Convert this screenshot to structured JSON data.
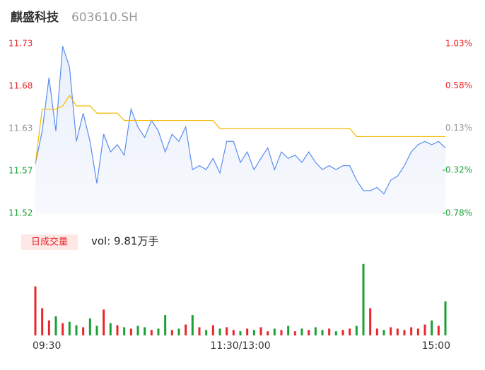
{
  "chart_data": {
    "type": "line",
    "title": "麒盛科技",
    "subtitle": "603610.SH",
    "x": [
      0,
      4,
      8,
      12,
      16,
      20,
      24,
      28,
      32,
      36,
      40,
      44,
      48,
      52,
      56,
      60,
      64,
      68,
      72,
      76,
      80,
      84,
      88,
      92,
      96,
      100,
      104,
      108,
      112,
      116,
      120,
      124,
      128,
      132,
      136,
      140,
      144,
      148,
      152,
      156,
      160,
      164,
      168,
      172,
      176,
      180,
      184,
      188,
      192,
      196,
      200,
      204,
      208,
      212,
      216,
      220,
      224,
      228,
      232,
      236,
      240
    ],
    "xlim": [
      0,
      240
    ],
    "xticks": [
      {
        "value": 0,
        "label": "09:30"
      },
      {
        "value": 120,
        "label": "11:30/13:00"
      },
      {
        "value": 240,
        "label": "15:00"
      }
    ],
    "series": [
      {
        "color": "#5b8def",
        "values": [
          11.581,
          11.622,
          11.688,
          11.622,
          11.727,
          11.701,
          11.609,
          11.644,
          11.609,
          11.557,
          11.618,
          11.596,
          11.605,
          11.592,
          11.649,
          11.627,
          11.614,
          11.635,
          11.622,
          11.596,
          11.618,
          11.609,
          11.627,
          11.574,
          11.579,
          11.574,
          11.588,
          11.57,
          11.609,
          11.609,
          11.583,
          11.596,
          11.574,
          11.588,
          11.601,
          11.574,
          11.596,
          11.588,
          11.592,
          11.583,
          11.596,
          11.583,
          11.574,
          11.579,
          11.574,
          11.579,
          11.579,
          11.561,
          11.548,
          11.548,
          11.552,
          11.544,
          11.561,
          11.566,
          11.579,
          11.596,
          11.605,
          11.609,
          11.605,
          11.609,
          11.601
        ]
      },
      {
        "color": "#f5b800",
        "values": [
          11.581,
          11.649,
          11.649,
          11.649,
          11.653,
          11.666,
          11.653,
          11.653,
          11.653,
          11.644,
          11.644,
          11.644,
          11.644,
          11.635,
          11.635,
          11.635,
          11.635,
          11.635,
          11.635,
          11.635,
          11.635,
          11.635,
          11.635,
          11.635,
          11.635,
          11.635,
          11.635,
          11.625,
          11.625,
          11.625,
          11.625,
          11.625,
          11.625,
          11.625,
          11.625,
          11.625,
          11.625,
          11.625,
          11.625,
          11.625,
          11.625,
          11.625,
          11.625,
          11.625,
          11.625,
          11.625,
          11.625,
          11.615,
          11.615,
          11.615,
          11.615,
          11.615,
          11.615,
          11.615,
          11.615,
          11.615,
          11.615,
          11.615,
          11.615,
          11.615,
          11.615
        ]
      }
    ],
    "ylim": [
      11.52,
      11.73
    ],
    "yticks": [
      11.73,
      {
        "value": 11.6775,
        "label": "11.68"
      },
      {
        "value": 11.625,
        "label": "11.63"
      },
      {
        "value": 11.5725,
        "label": "11.57"
      },
      11.52
    ],
    "y2lim": [
      -0.78,
      1.03
    ],
    "y2ticks": [
      {
        "value": 1.03,
        "label": "1.03%"
      },
      {
        "value": 0.58,
        "label": "0.58%"
      },
      {
        "value": 0.13,
        "label": "0.13%"
      },
      {
        "value": -0.32,
        "label": "-0.32%"
      },
      {
        "value": -0.78,
        "label": "-0.78%"
      }
    ],
    "up_color": "#e8262b",
    "down_color": "#1aa034",
    "flat_color": "#999999",
    "volume": {
      "legend": "日成交量",
      "label": "vol: 9.81万手",
      "ylim": [
        0,
        110
      ],
      "values": [
        72,
        40,
        22,
        28,
        18,
        20,
        15,
        12,
        25,
        14,
        38,
        18,
        15,
        12,
        10,
        14,
        12,
        8,
        10,
        30,
        8,
        10,
        16,
        30,
        12,
        8,
        15,
        10,
        12,
        8,
        6,
        10,
        8,
        12,
        6,
        10,
        8,
        14,
        6,
        10,
        8,
        12,
        8,
        10,
        6,
        8,
        10,
        14,
        105,
        40,
        10,
        8,
        12,
        10,
        8,
        12,
        10,
        16,
        22,
        14,
        50
      ]
    }
  }
}
